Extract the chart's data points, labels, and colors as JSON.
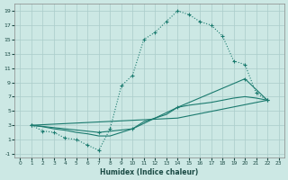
{
  "xlabel": "Humidex (Indice chaleur)",
  "background_color": "#cce8e4",
  "grid_color": "#aaccca",
  "line_color": "#1a7a6e",
  "xlim": [
    -0.5,
    23.5
  ],
  "ylim": [
    -1.5,
    20
  ],
  "xticks": [
    0,
    1,
    2,
    3,
    4,
    5,
    6,
    7,
    8,
    9,
    10,
    11,
    12,
    13,
    14,
    15,
    16,
    17,
    18,
    19,
    20,
    21,
    22,
    23
  ],
  "yticks": [
    -1,
    1,
    3,
    5,
    7,
    9,
    11,
    13,
    15,
    17,
    19
  ],
  "line1_x": [
    1,
    2,
    3,
    4,
    5,
    6,
    7,
    8,
    9,
    10,
    11,
    12,
    13,
    14,
    15,
    16,
    17,
    18,
    19,
    20,
    21,
    22
  ],
  "line1_y": [
    3,
    2.2,
    2.0,
    1.2,
    1.0,
    0.2,
    -0.5,
    2.5,
    8.5,
    10,
    15,
    16,
    17.5,
    19,
    18.5,
    17.5,
    17,
    15.5,
    12,
    11.5,
    7.5,
    6.5
  ],
  "line2_x": [
    1,
    2,
    3,
    4,
    5,
    6,
    7,
    8,
    9,
    10,
    11,
    12,
    13,
    14,
    15,
    16,
    17,
    18,
    19,
    20,
    21,
    22
  ],
  "line2_y": [
    3,
    2.8,
    2.5,
    2.3,
    2.0,
    1.8,
    1.5,
    1.5,
    2.0,
    2.5,
    3.5,
    4.0,
    4.5,
    5.5,
    5.8,
    6.0,
    6.2,
    6.5,
    6.8,
    7.0,
    6.8,
    6.5
  ],
  "line3_x": [
    1,
    7,
    10,
    14,
    20,
    22
  ],
  "line3_y": [
    3,
    2.0,
    2.5,
    5.5,
    9.5,
    6.5
  ],
  "line4_x": [
    1,
    14,
    22
  ],
  "line4_y": [
    3,
    4.0,
    6.5
  ]
}
